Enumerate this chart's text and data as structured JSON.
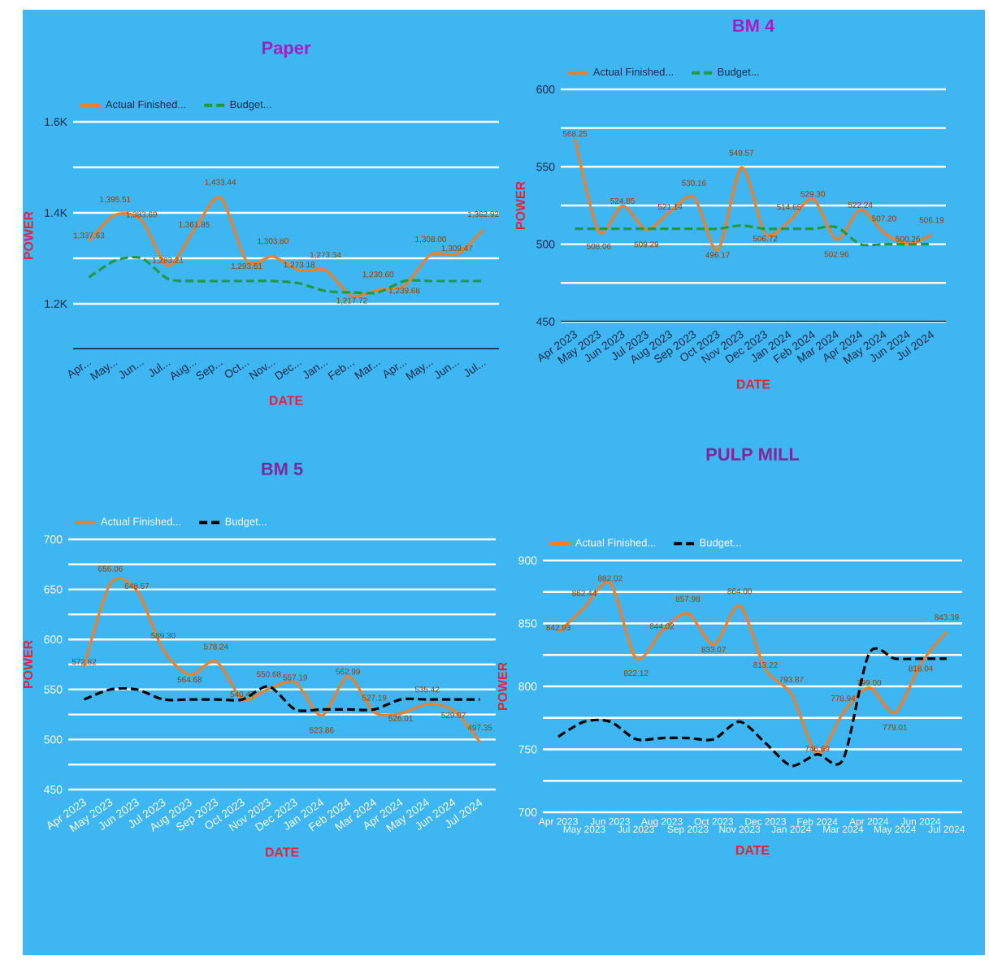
{
  "chart_data": [
    {
      "type": "line",
      "title": "Paper",
      "xlabel": "DATE",
      "ylabel": "POWER",
      "grid": "y",
      "legend": "top left",
      "marker": "none",
      "categories": [
        "Apr...",
        "May...",
        "Jun...",
        "Jul...",
        "Aug...",
        "Sep...",
        "Oct...",
        "Nov...",
        "Dec...",
        "Jan...",
        "Feb...",
        "Mar...",
        "Apr...",
        "May...",
        "Jun...",
        "Jul..."
      ],
      "ylim": [
        1100,
        1600
      ],
      "yticks": [
        {
          "value": 1200,
          "label": "1.2K"
        },
        {
          "value": 1300,
          "label": null
        },
        {
          "value": 1400,
          "label": "1.4K"
        },
        {
          "value": 1500,
          "label": null
        },
        {
          "value": 1600,
          "label": "1.6K"
        }
      ],
      "series": [
        {
          "name": "Actual Finished...",
          "color": "#f07f2a",
          "line_style": "solid",
          "values": [
            1337.63,
            1395.51,
            1383.69,
            1283.21,
            1361.85,
            1433.44,
            1293.61,
            1303.8,
            1273.18,
            1273.34,
            1217.72,
            1230.6,
            1239.68,
            1308.0,
            1309.47,
            1362.92
          ],
          "value_labels": [
            "1,337.63",
            "1,395.51",
            "1,383.69",
            "1,283.21",
            "1,361.85",
            "1,433.44",
            "1,293.61",
            "1,303.80",
            "1,273.18",
            "1,273.34",
            "1,217.72",
            "1,230.60",
            "1,239.68",
            "1,308.00",
            "1,309.47",
            "1,362.92"
          ]
        },
        {
          "name": "Budget...",
          "color": "#1f9a3c",
          "line_style": "dashed",
          "values": [
            1258,
            1295,
            1300,
            1255,
            1250,
            1250,
            1250,
            1250,
            1245,
            1228,
            1225,
            1225,
            1250,
            1250,
            1250,
            1250
          ]
        }
      ]
    },
    {
      "type": "line",
      "title": "BM 4",
      "xlabel": "DATE",
      "ylabel": "POWER",
      "grid": "y",
      "legend": "top left",
      "marker": "none",
      "categories": [
        "Apr 2023",
        "May 2023",
        "Jun 2023",
        "Jul 2023",
        "Aug 2023",
        "Sep 2023",
        "Oct 2023",
        "Nov 2023",
        "Dec 2023",
        "Jan 2024",
        "Feb 2024",
        "Mar 2024",
        "Apr 2024",
        "May 2024",
        "Jun 2024",
        "Jul 2024"
      ],
      "ylim": [
        450,
        600
      ],
      "yticks": [
        450,
        {
          "value": 475,
          "label": null
        },
        500,
        {
          "value": 525,
          "label": null
        },
        550,
        {
          "value": 575,
          "label": null
        },
        600
      ],
      "series": [
        {
          "name": "Actual Finished...",
          "color": "#f07f2a",
          "line_style": "solid",
          "values": [
            568.25,
            508.06,
            524.85,
            509.29,
            521.14,
            530.16,
            496.17,
            549.57,
            506.72,
            514.65,
            529.3,
            502.96,
            522.24,
            507.2,
            500.26,
            506.19
          ],
          "value_labels": [
            "568.25",
            "508.06",
            "524.85",
            "509.29",
            "521.14",
            "530.16",
            "496.17",
            "549.57",
            "506.72",
            "514.65",
            "529.30",
            "502.96",
            "522.24",
            "507.20",
            "500.26",
            "506.19"
          ]
        },
        {
          "name": "Budget...",
          "color": "#1f9a3c",
          "line_style": "dashed",
          "values": [
            510,
            510,
            510,
            510,
            510,
            510,
            510,
            512,
            510,
            510,
            510,
            511,
            500,
            500,
            500,
            500
          ]
        }
      ]
    },
    {
      "type": "line",
      "title": "BM 5",
      "xlabel": "DATE",
      "ylabel": "POWER",
      "grid": "y",
      "legend": "top left",
      "marker": "none",
      "categories": [
        "Apr 2023",
        "May 2023",
        "Jun 2023",
        "Jul 2023",
        "Aug 2023",
        "Sep 2023",
        "Oct 2023",
        "Nov 2023",
        "Dec 2023",
        "Jan 2024",
        "Feb 2024",
        "Mar 2024",
        "Apr 2024",
        "May 2024",
        "Jun 2024",
        "Jul 2024"
      ],
      "ylim": [
        450,
        700
      ],
      "yticks": [
        450,
        {
          "value": 475,
          "label": null
        },
        500,
        {
          "value": 525,
          "label": null
        },
        550,
        {
          "value": 575,
          "label": null
        },
        600,
        {
          "value": 625,
          "label": null
        },
        650,
        {
          "value": 675,
          "label": null
        },
        700
      ],
      "series": [
        {
          "name": "Actual Finished...",
          "color": "#f07f2a",
          "line_style": "solid",
          "values": [
            572.82,
            656.06,
            648.57,
            589.3,
            564.68,
            578.24,
            540.47,
            550.68,
            557.19,
            523.86,
            562.99,
            527.19,
            526.01,
            535.42,
            529.07,
            497.35
          ],
          "value_labels": [
            "572.82",
            "656.06",
            "648.57",
            "589.30",
            "564.68",
            "578.24",
            "540.47",
            "550.68",
            "557.19",
            "523.86",
            "562.99",
            "527.19",
            "526.01",
            "535.42",
            "529.07",
            "497.35"
          ]
        },
        {
          "name": "Budget...",
          "color": "#000000",
          "line_style": "dashed",
          "values": [
            540,
            550,
            550,
            540,
            540,
            540,
            540,
            553,
            530,
            530,
            530,
            530,
            540,
            540,
            540,
            540
          ]
        }
      ]
    },
    {
      "type": "line",
      "title": "PULP MILL",
      "xlabel": "DATE",
      "ylabel": "POWER",
      "grid": "y",
      "legend": "top left",
      "marker": "none",
      "categories": [
        "Apr 2023",
        "May 2023",
        "Jun 2023",
        "Jul 2023",
        "Aug 2023",
        "Sep 2023",
        "Oct 2023",
        "Nov 2023",
        "Dec 2023",
        "Jan 2024",
        "Feb 2024",
        "Mar 2024",
        "Apr 2024",
        "May 2024",
        "Jun 2024",
        "Jul 2024"
      ],
      "ylim": [
        700,
        900
      ],
      "yticks": [
        700,
        {
          "value": 725,
          "label": null
        },
        750,
        {
          "value": 775,
          "label": null
        },
        800,
        {
          "value": 825,
          "label": null
        },
        850,
        {
          "value": 875,
          "label": null
        },
        900
      ],
      "series": [
        {
          "name": "Actual Finished...",
          "color": "#f07f2a",
          "line_style": "solid",
          "values": [
            842.93,
            862.44,
            882.02,
            822.12,
            844.02,
            857.98,
            833.07,
            864.0,
            813.22,
            793.87,
            746.69,
            778.94,
            799.0,
            779.01,
            818.04,
            843.39
          ],
          "value_labels": [
            "842.93",
            "862.44",
            "882.02",
            "822.12",
            "844.02",
            "857.98",
            "833.07",
            "864.00",
            "813.22",
            "793.87",
            "746.69",
            "778.94",
            "799.00",
            "779.01",
            "818.04",
            "843.39"
          ]
        },
        {
          "name": "Budget...",
          "color": "#000000",
          "line_style": "dashed",
          "values": [
            760,
            772,
            772,
            758,
            759,
            759,
            758,
            772,
            755,
            737,
            746,
            742,
            826,
            822,
            822,
            822
          ]
        }
      ]
    }
  ]
}
